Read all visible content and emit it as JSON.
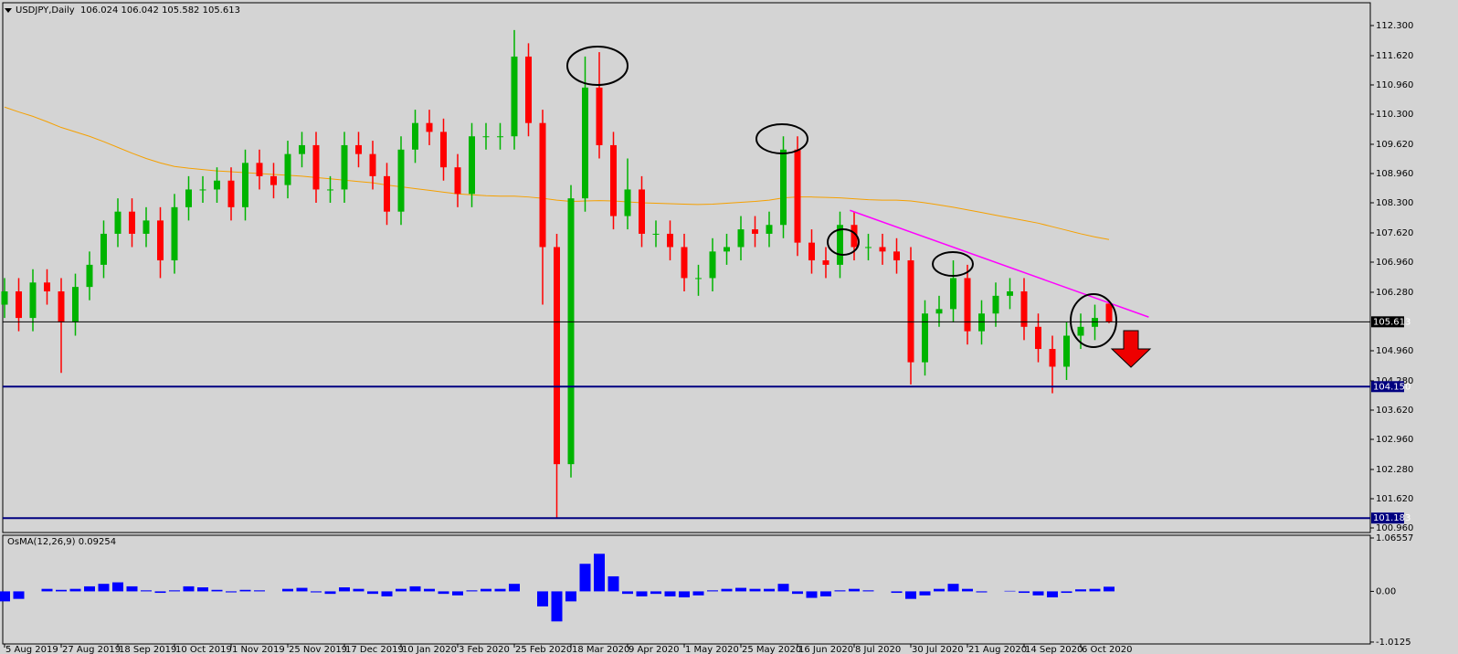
{
  "chart_data": [
    {
      "type": "candlestick",
      "title": "USDJPY,Daily",
      "subtitle": "106.024 106.042 105.582 105.613",
      "categories": [
        "5 Aug 2019",
        null,
        null,
        null,
        "27 Aug 2019",
        null,
        null,
        null,
        "18 Sep 2019",
        null,
        null,
        null,
        "10 Oct 2019",
        null,
        null,
        null,
        "1 Nov 2019",
        null,
        null,
        null,
        "25 Nov 2019",
        null,
        null,
        null,
        "17 Dec 2019",
        null,
        null,
        null,
        "10 Jan 2020",
        null,
        null,
        null,
        "3 Feb 2020",
        null,
        null,
        null,
        "25 Feb 2020",
        null,
        null,
        null,
        "18 Mar 2020",
        null,
        null,
        null,
        "9 Apr 2020",
        null,
        null,
        null,
        "1 May 2020",
        null,
        null,
        null,
        "25 May 2020",
        null,
        null,
        null,
        "16 Jun 2020",
        null,
        null,
        null,
        "8 Jul 2020",
        null,
        null,
        null,
        "30 Jul 2020",
        null,
        null,
        null,
        "21 Aug 2020",
        null,
        null,
        null,
        "14 Sep 2020",
        null,
        null,
        null,
        "6 Oct 2020",
        null,
        null
      ],
      "open": [
        106.0,
        106.3,
        105.7,
        106.5,
        106.3,
        105.6,
        106.4,
        106.9,
        107.6,
        108.1,
        107.6,
        107.9,
        107.0,
        108.2,
        108.6,
        108.6,
        108.8,
        108.2,
        109.2,
        108.9,
        108.7,
        109.4,
        109.6,
        108.6,
        108.6,
        109.6,
        109.4,
        108.9,
        108.1,
        109.5,
        110.1,
        109.9,
        109.1,
        108.5,
        109.8,
        109.8,
        109.8,
        111.6,
        110.1,
        107.3,
        102.4,
        108.4,
        110.9,
        109.6,
        108.0,
        108.6,
        107.6,
        107.6,
        107.3,
        106.6,
        106.6,
        107.2,
        107.3,
        107.7,
        107.6,
        107.8,
        109.5,
        107.4,
        107.0,
        106.9,
        107.8,
        107.3,
        107.3,
        107.2,
        107.0,
        104.7,
        105.8,
        105.9,
        106.6,
        105.4,
        105.8,
        106.2,
        106.3,
        105.5,
        105.0,
        104.6,
        105.3,
        105.5,
        106.024
      ],
      "high": [
        106.6,
        106.6,
        106.8,
        106.8,
        106.6,
        106.7,
        107.2,
        107.9,
        108.4,
        108.4,
        108.2,
        108.2,
        108.5,
        108.9,
        108.9,
        109.1,
        109.1,
        109.5,
        109.5,
        109.2,
        109.7,
        109.9,
        109.9,
        108.9,
        109.9,
        109.9,
        109.7,
        109.2,
        109.8,
        110.4,
        110.4,
        110.2,
        109.4,
        110.1,
        110.1,
        110.1,
        112.2,
        111.9,
        110.4,
        107.6,
        108.7,
        111.6,
        111.7,
        109.9,
        109.3,
        108.9,
        107.9,
        107.9,
        107.6,
        106.9,
        107.5,
        107.6,
        108.0,
        108.0,
        108.1,
        109.8,
        109.8,
        107.7,
        107.3,
        108.1,
        108.1,
        107.6,
        107.6,
        107.5,
        107.3,
        106.1,
        106.2,
        107.0,
        106.9,
        106.1,
        106.5,
        106.6,
        106.6,
        105.8,
        105.3,
        105.6,
        105.8,
        106.0,
        106.042
      ],
      "low": [
        105.7,
        105.4,
        105.4,
        106.0,
        104.46,
        105.3,
        106.1,
        106.6,
        107.3,
        107.3,
        107.3,
        106.6,
        106.7,
        107.9,
        108.3,
        108.3,
        107.9,
        107.9,
        108.6,
        108.4,
        108.4,
        109.1,
        108.3,
        108.3,
        108.3,
        109.1,
        108.6,
        107.8,
        107.8,
        109.2,
        109.6,
        108.8,
        108.2,
        108.2,
        109.5,
        109.5,
        109.5,
        109.8,
        106.0,
        101.18,
        102.1,
        108.1,
        109.3,
        107.7,
        107.7,
        107.3,
        107.3,
        107.0,
        106.3,
        106.2,
        106.3,
        106.9,
        107.0,
        107.3,
        107.3,
        107.5,
        107.1,
        106.7,
        106.6,
        106.6,
        107.0,
        107.0,
        106.9,
        106.7,
        104.2,
        104.4,
        105.5,
        105.6,
        105.1,
        105.1,
        105.5,
        105.9,
        105.2,
        104.7,
        104.0,
        104.3,
        105.0,
        105.2,
        105.582
      ],
      "close": [
        106.3,
        105.7,
        106.5,
        106.3,
        105.6,
        106.4,
        106.9,
        107.6,
        108.1,
        107.6,
        107.9,
        107.0,
        108.2,
        108.6,
        108.6,
        108.8,
        108.2,
        109.2,
        108.9,
        108.7,
        109.4,
        109.6,
        108.6,
        108.6,
        109.6,
        109.4,
        108.9,
        108.1,
        109.5,
        110.1,
        109.9,
        109.1,
        108.5,
        109.8,
        109.8,
        109.8,
        111.6,
        110.1,
        107.3,
        102.4,
        108.4,
        110.9,
        109.6,
        108.0,
        108.6,
        107.6,
        107.6,
        107.3,
        106.6,
        106.6,
        107.2,
        107.3,
        107.7,
        107.6,
        107.8,
        109.5,
        107.4,
        107.0,
        106.9,
        107.8,
        107.3,
        107.3,
        107.2,
        107.0,
        104.7,
        105.8,
        105.9,
        106.6,
        105.4,
        105.8,
        106.2,
        106.3,
        105.5,
        105.0,
        104.6,
        105.3,
        105.5,
        105.7,
        105.613
      ],
      "up_color": "#00b400",
      "down_color": "#ff0000",
      "moving_average": {
        "color": "#f5a000",
        "values": [
          110.46,
          110.35,
          110.25,
          110.13,
          110.0,
          109.9,
          109.8,
          109.68,
          109.55,
          109.42,
          109.3,
          109.2,
          109.12,
          109.08,
          109.05,
          109.02,
          109.0,
          108.98,
          108.96,
          108.94,
          108.92,
          108.9,
          108.87,
          108.84,
          108.81,
          108.78,
          108.75,
          108.7,
          108.66,
          108.62,
          108.58,
          108.54,
          108.5,
          108.48,
          108.46,
          108.45,
          108.45,
          108.43,
          108.4,
          108.36,
          108.33,
          108.34,
          108.35,
          108.34,
          108.32,
          108.3,
          108.29,
          108.28,
          108.27,
          108.26,
          108.27,
          108.29,
          108.31,
          108.33,
          108.36,
          108.41,
          108.43,
          108.43,
          108.42,
          108.41,
          108.39,
          108.37,
          108.36,
          108.36,
          108.34,
          108.3,
          108.25,
          108.2,
          108.14,
          108.08,
          108.02,
          107.96,
          107.9,
          107.84,
          107.76,
          107.68,
          107.6,
          107.53,
          107.47
        ]
      },
      "trendline": {
        "color": "#ff00ff",
        "x": [
          59.7,
          80.8
        ],
        "y": [
          108.13,
          105.72
        ]
      },
      "hlines": [
        {
          "value": 104.15,
          "label": "104.150",
          "color": "#000080",
          "line_width": 2
        },
        {
          "value": 101.183,
          "label": "101.183",
          "color": "#000080",
          "line_width": 2
        },
        {
          "value": 105.613,
          "label": "105.613",
          "color": "#000000",
          "line_width": 1
        }
      ],
      "ylim": [
        100.857,
        112.815
      ],
      "yticks": [
        {
          "value": 112.3,
          "label": "112.300"
        },
        {
          "value": 111.62,
          "label": "111.620"
        },
        {
          "value": 110.96,
          "label": "110.960"
        },
        {
          "value": 110.3,
          "label": "110.300"
        },
        {
          "value": 109.62,
          "label": "109.620"
        },
        {
          "value": 108.96,
          "label": "108.960"
        },
        {
          "value": 108.3,
          "label": "108.300"
        },
        {
          "value": 107.62,
          "label": "107.620"
        },
        {
          "value": 106.96,
          "label": "106.960"
        },
        {
          "value": 106.28,
          "label": "106.280"
        },
        {
          "value": 104.96,
          "label": "104.960"
        },
        {
          "value": 104.28,
          "label": "104.280"
        },
        {
          "value": 103.62,
          "label": "103.620"
        },
        {
          "value": 102.96,
          "label": "102.960"
        },
        {
          "value": 102.28,
          "label": "102.280"
        },
        {
          "value": 101.62,
          "label": "101.620"
        },
        {
          "value": 100.96,
          "label": "100.960"
        }
      ],
      "grid": false
    },
    {
      "type": "histogram",
      "title": "OsMA(12,26,9) 0.09254",
      "color": "#0000ff",
      "values": [
        -0.2,
        -0.15,
        0.0,
        0.05,
        0.03,
        0.05,
        0.1,
        0.15,
        0.18,
        0.1,
        0.02,
        -0.03,
        0.02,
        0.1,
        0.08,
        0.03,
        -0.02,
        0.03,
        0.02,
        0.0,
        0.05,
        0.07,
        -0.02,
        -0.05,
        0.08,
        0.05,
        -0.05,
        -0.1,
        0.05,
        0.1,
        0.05,
        -0.05,
        -0.08,
        0.02,
        0.05,
        0.05,
        0.15,
        0.0,
        -0.3,
        -0.6,
        -0.2,
        0.55,
        0.75,
        0.3,
        -0.05,
        -0.1,
        -0.05,
        -0.1,
        -0.12,
        -0.08,
        0.02,
        0.05,
        0.07,
        0.05,
        0.05,
        0.15,
        -0.05,
        -0.13,
        -0.1,
        0.02,
        0.05,
        0.02,
        0.0,
        -0.03,
        -0.15,
        -0.08,
        0.05,
        0.15,
        0.05,
        -0.02,
        0.0,
        0.01,
        -0.03,
        -0.08,
        -0.12,
        -0.03,
        0.04,
        0.05,
        0.09254
      ],
      "ylim": [
        -1.05,
        1.12
      ],
      "yticks": [
        1.06557,
        {
          "value": 0,
          "label": "0.00"
        },
        -1.0125
      ]
    }
  ]
}
